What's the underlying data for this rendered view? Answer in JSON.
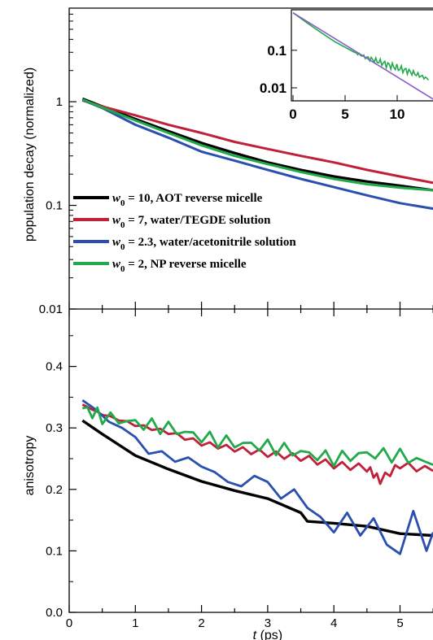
{
  "colors": {
    "aot": "#000000",
    "tegde": "#c0203a",
    "acetonitrile": "#2a4fb0",
    "np": "#22a94a",
    "inset_fit": "#8a5cc8"
  },
  "chart_data": [
    {
      "type": "line",
      "panel": "top",
      "ylabel": "population decay (normalized)",
      "yscale": "log",
      "ylim": [
        0.01,
        8
      ],
      "xlim": [
        0,
        5.5
      ],
      "ytick_labels": [
        "0.01",
        "0.1",
        "1"
      ],
      "yticks": [
        0.01,
        0.1,
        1
      ],
      "legend": {
        "placement": "lower-left",
        "entries": [
          {
            "key": "aot",
            "symbol": "w",
            "sub": "0",
            "text": " = 10, AOT reverse micelle"
          },
          {
            "key": "tegde",
            "symbol": "w",
            "sub": "0",
            "text": " = 7, water/TEGDE solution"
          },
          {
            "key": "acetonitrile",
            "symbol": "w",
            "sub": "0",
            "text": " = 2.3, water/acetonitrile solution"
          },
          {
            "key": "np",
            "symbol": "w",
            "sub": "0",
            "text": " = 2, NP reverse micelle"
          }
        ]
      },
      "series": [
        {
          "key": "aot",
          "x": [
            0.2,
            0.5,
            1.0,
            1.5,
            2.0,
            2.5,
            3.0,
            3.5,
            4.0,
            4.5,
            5.0,
            5.5
          ],
          "y": [
            1.07,
            0.9,
            0.68,
            0.52,
            0.4,
            0.32,
            0.26,
            0.22,
            0.19,
            0.17,
            0.155,
            0.14
          ]
        },
        {
          "key": "tegde",
          "x": [
            0.2,
            0.5,
            1.0,
            1.5,
            2.0,
            2.5,
            3.0,
            3.5,
            4.0,
            4.5,
            5.0,
            5.5
          ],
          "y": [
            1.03,
            0.9,
            0.74,
            0.6,
            0.5,
            0.41,
            0.35,
            0.3,
            0.26,
            0.22,
            0.19,
            0.165
          ]
        },
        {
          "key": "acetonitrile",
          "x": [
            0.2,
            0.5,
            1.0,
            1.5,
            2.0,
            2.5,
            3.0,
            3.5,
            4.0,
            4.5,
            5.0,
            5.5
          ],
          "y": [
            1.04,
            0.87,
            0.6,
            0.45,
            0.33,
            0.27,
            0.22,
            0.18,
            0.15,
            0.125,
            0.105,
            0.093
          ]
        },
        {
          "key": "np",
          "x": [
            0.2,
            0.5,
            1.0,
            1.5,
            2.0,
            2.5,
            3.0,
            3.5,
            4.0,
            4.5,
            5.0,
            5.5
          ],
          "y": [
            1.05,
            0.88,
            0.66,
            0.5,
            0.38,
            0.3,
            0.25,
            0.21,
            0.18,
            0.16,
            0.148,
            0.14
          ]
        }
      ],
      "inset": {
        "xlim": [
          0,
          13.5
        ],
        "ylim": [
          0.0045,
          1.2
        ],
        "yscale": "log",
        "xtick_labels": [
          "0",
          "5",
          "10"
        ],
        "xticks": [
          0,
          5,
          10
        ],
        "ytick_labels": [
          "0.01",
          "0.1"
        ],
        "yticks": [
          0.01,
          0.1
        ],
        "series": [
          {
            "key": "np",
            "x": [
              0,
              1,
              2,
              3,
              4,
              5,
              6,
              7,
              8,
              9,
              10,
              11,
              12,
              13
            ],
            "y": [
              1.0,
              0.63,
              0.4,
              0.26,
              0.17,
              0.12,
              0.085,
              0.065,
              0.052,
              0.042,
              0.034,
              0.028,
              0.022,
              0.017
            ]
          },
          {
            "key": "inset_fit",
            "x": [
              0,
              13.5
            ],
            "y": [
              1.0,
              0.0049
            ]
          }
        ]
      }
    },
    {
      "type": "line",
      "panel": "bottom",
      "xlabel_symbol": "t",
      "xlabel_unit": " (ps)",
      "ylabel": "anisotropy",
      "xlim": [
        0,
        5.5
      ],
      "ylim": [
        0.0,
        0.5
      ],
      "xtick_labels": [
        "0",
        "1",
        "2",
        "3",
        "4",
        "5"
      ],
      "xticks": [
        0,
        1,
        2,
        3,
        4,
        5
      ],
      "ytick_labels": [
        "0.0",
        "0.1",
        "0.2",
        "0.3",
        "0.4"
      ],
      "yticks": [
        0.0,
        0.1,
        0.2,
        0.3,
        0.4
      ],
      "series": [
        {
          "key": "aot",
          "x": [
            0.2,
            0.5,
            1.0,
            1.5,
            2.0,
            2.5,
            3.0,
            3.5,
            3.6,
            4.0,
            4.5,
            5.0,
            5.5
          ],
          "y": [
            0.312,
            0.29,
            0.255,
            0.233,
            0.213,
            0.198,
            0.185,
            0.162,
            0.148,
            0.145,
            0.14,
            0.128,
            0.125
          ]
        },
        {
          "key": "tegde",
          "x": [
            0.2,
            0.5,
            1.0,
            1.5,
            2.0,
            2.5,
            3.0,
            3.5,
            4.0,
            4.5,
            4.7,
            5.0,
            5.5
          ],
          "y": [
            0.338,
            0.322,
            0.305,
            0.293,
            0.275,
            0.266,
            0.258,
            0.252,
            0.24,
            0.235,
            0.215,
            0.24,
            0.23
          ]
        },
        {
          "key": "acetonitrile",
          "x": [
            0.2,
            0.4,
            0.6,
            0.8,
            1.0,
            1.2,
            1.4,
            1.6,
            1.8,
            2.0,
            2.2,
            2.4,
            2.6,
            2.8,
            3.0,
            3.2,
            3.4,
            3.6,
            3.8,
            4.0,
            4.2,
            4.4,
            4.6,
            4.8,
            5.0,
            5.2,
            5.4,
            5.5
          ],
          "y": [
            0.345,
            0.33,
            0.31,
            0.3,
            0.285,
            0.258,
            0.262,
            0.245,
            0.252,
            0.237,
            0.228,
            0.212,
            0.205,
            0.222,
            0.212,
            0.185,
            0.2,
            0.17,
            0.155,
            0.13,
            0.162,
            0.125,
            0.153,
            0.11,
            0.095,
            0.165,
            0.1,
            0.13
          ]
        },
        {
          "key": "np",
          "x": [
            0.2,
            0.5,
            1.0,
            1.5,
            2.0,
            2.5,
            3.0,
            3.5,
            4.0,
            4.5,
            5.0,
            5.5
          ],
          "y": [
            0.332,
            0.318,
            0.308,
            0.3,
            0.285,
            0.275,
            0.27,
            0.26,
            0.25,
            0.258,
            0.255,
            0.24
          ]
        }
      ]
    }
  ]
}
